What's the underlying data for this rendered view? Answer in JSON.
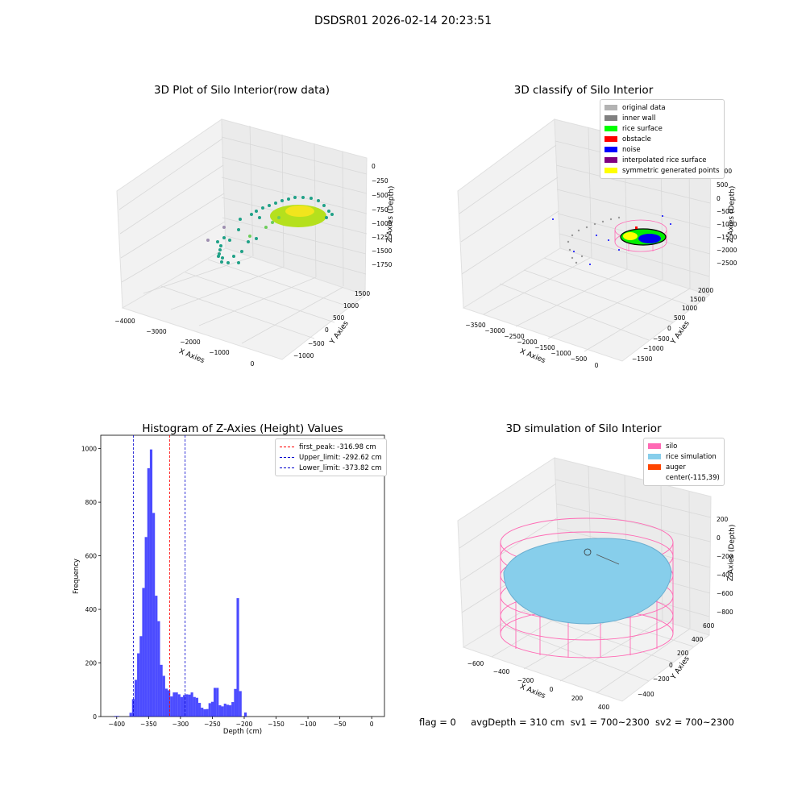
{
  "suptitle": "DSDSR01 2026-02-14 20:23:51",
  "panels": {
    "raw": {
      "title": "3D Plot of Silo Interior(row data)",
      "xlabel": "X Axies",
      "ylabel": "Y Axies",
      "zlabel": "Z Axies (Depth)",
      "xticks": [
        "−4000",
        "−3000",
        "−2000",
        "−1000",
        "0"
      ],
      "yticks": [
        "−1000",
        "−500",
        "0",
        "500",
        "1000",
        "1500"
      ],
      "zticks": [
        "0",
        "−250",
        "−500",
        "−750",
        "−1000",
        "−1250",
        "−1500",
        "−1750"
      ]
    },
    "classify": {
      "title": "3D classify of Silo Interior",
      "xlabel": "X Axies",
      "ylabel": "Y Axies",
      "zlabel": "Z Axies (Depth)",
      "xticks": [
        "−3500",
        "−3000",
        "−2500",
        "−2000",
        "−1500",
        "−1000",
        "−500",
        "0"
      ],
      "yticks": [
        "−1500",
        "−1000",
        "−500",
        "0",
        "500",
        "1000",
        "1500",
        "2000"
      ],
      "zticks": [
        "1000",
        "500",
        "0",
        "−500",
        "−1000",
        "−1500",
        "−2000",
        "−2500"
      ],
      "legend": [
        {
          "label": "original data",
          "color": "#b3b3b3"
        },
        {
          "label": "inner wall",
          "color": "#808080"
        },
        {
          "label": "rice surface",
          "color": "#00ff00"
        },
        {
          "label": "obstacle",
          "color": "#ff0000"
        },
        {
          "label": "noise",
          "color": "#0000ff"
        },
        {
          "label": "interpolated rice surface",
          "color": "#800080"
        },
        {
          "label": "symmetric generated points",
          "color": "#ffff00"
        }
      ]
    },
    "simulation": {
      "title": "3D simulation of Silo Interior",
      "xlabel": "X Axies",
      "ylabel": "Y Axies",
      "zlabel": "Z Axies (Depth)",
      "xticks": [
        "−600",
        "−400",
        "−200",
        "0",
        "200",
        "400"
      ],
      "yticks": [
        "−400",
        "−200",
        "0",
        "200",
        "400",
        "600"
      ],
      "zticks": [
        "200",
        "0",
        "−200",
        "−400",
        "−600",
        "−800"
      ],
      "legend": [
        {
          "label": "silo",
          "color": "#ff69b4"
        },
        {
          "label": "rice simulation",
          "color": "#87ceeb"
        },
        {
          "label": "auger",
          "color": "#ff4500"
        },
        {
          "label": "center(-115,39)",
          "color": ""
        }
      ]
    }
  },
  "chart_data": {
    "type": "bar",
    "title": "Histogram of Z-Axies (Height) Values",
    "xlabel": "Depth (cm)",
    "ylabel": "Frequency",
    "xlim": [
      -425,
      20
    ],
    "ylim": [
      0,
      1050
    ],
    "bar_color": "#0000ff",
    "xticks": [
      -400,
      -350,
      -300,
      -250,
      -200,
      -150,
      -100,
      -50,
      0
    ],
    "xtick_labels": [
      "−400",
      "−350",
      "−300",
      "−250",
      "−200",
      "−150",
      "−100",
      "−50",
      "0"
    ],
    "yticks": [
      0,
      200,
      400,
      600,
      800,
      1000
    ],
    "bins": [
      {
        "x0": -404,
        "x1": -396,
        "count": 2
      },
      {
        "x0": -396,
        "x1": -388,
        "count": 0
      },
      {
        "x0": -388,
        "x1": -380,
        "count": 0
      },
      {
        "x0": -380,
        "x1": -376,
        "count": 14
      },
      {
        "x0": -376,
        "x1": -372,
        "count": 65
      },
      {
        "x0": -372,
        "x1": -368,
        "count": 137
      },
      {
        "x0": -368,
        "x1": -364,
        "count": 236
      },
      {
        "x0": -364,
        "x1": -360,
        "count": 300
      },
      {
        "x0": -360,
        "x1": -356,
        "count": 480
      },
      {
        "x0": -356,
        "x1": -352,
        "count": 670
      },
      {
        "x0": -352,
        "x1": -348,
        "count": 927
      },
      {
        "x0": -348,
        "x1": -344,
        "count": 997
      },
      {
        "x0": -344,
        "x1": -340,
        "count": 760
      },
      {
        "x0": -340,
        "x1": -336,
        "count": 451
      },
      {
        "x0": -336,
        "x1": -332,
        "count": 356
      },
      {
        "x0": -332,
        "x1": -328,
        "count": 193
      },
      {
        "x0": -328,
        "x1": -324,
        "count": 152
      },
      {
        "x0": -324,
        "x1": -320,
        "count": 104
      },
      {
        "x0": -320,
        "x1": -316,
        "count": 98
      },
      {
        "x0": -316,
        "x1": -312,
        "count": 75
      },
      {
        "x0": -312,
        "x1": -308,
        "count": 90
      },
      {
        "x0": -308,
        "x1": -304,
        "count": 90
      },
      {
        "x0": -304,
        "x1": -300,
        "count": 83
      },
      {
        "x0": -300,
        "x1": -296,
        "count": 73
      },
      {
        "x0": -296,
        "x1": -292,
        "count": 80
      },
      {
        "x0": -292,
        "x1": -288,
        "count": 83
      },
      {
        "x0": -288,
        "x1": -284,
        "count": 82
      },
      {
        "x0": -284,
        "x1": -280,
        "count": 90
      },
      {
        "x0": -280,
        "x1": -276,
        "count": 73
      },
      {
        "x0": -276,
        "x1": -272,
        "count": 70
      },
      {
        "x0": -272,
        "x1": -268,
        "count": 51
      },
      {
        "x0": -268,
        "x1": -264,
        "count": 33
      },
      {
        "x0": -264,
        "x1": -260,
        "count": 27
      },
      {
        "x0": -260,
        "x1": -256,
        "count": 28
      },
      {
        "x0": -256,
        "x1": -252,
        "count": 50
      },
      {
        "x0": -252,
        "x1": -248,
        "count": 55
      },
      {
        "x0": -248,
        "x1": -244,
        "count": 107
      },
      {
        "x0": -244,
        "x1": -240,
        "count": 107
      },
      {
        "x0": -240,
        "x1": -236,
        "count": 42
      },
      {
        "x0": -236,
        "x1": -232,
        "count": 38
      },
      {
        "x0": -232,
        "x1": -228,
        "count": 48
      },
      {
        "x0": -228,
        "x1": -224,
        "count": 44
      },
      {
        "x0": -224,
        "x1": -220,
        "count": 42
      },
      {
        "x0": -220,
        "x1": -216,
        "count": 54
      },
      {
        "x0": -216,
        "x1": -212,
        "count": 103
      },
      {
        "x0": -212,
        "x1": -208,
        "count": 442
      },
      {
        "x0": -208,
        "x1": -204,
        "count": 95
      },
      {
        "x0": -204,
        "x1": -200,
        "count": 0
      },
      {
        "x0": -200,
        "x1": -196,
        "count": 15
      }
    ],
    "vlines": [
      {
        "label": "first_peak: -316.98 cm",
        "x": -316.98,
        "color": "#ff0000"
      },
      {
        "label": "Upper_limit: -292.62 cm",
        "x": -292.62,
        "color": "#0000cc"
      },
      {
        "label": "Lower_limit: -373.82 cm",
        "x": -373.82,
        "color": "#0000cc"
      }
    ]
  },
  "footer": {
    "flag": "flag = 0",
    "avg": "avgDepth = 310 cm",
    "sv1": "sv1 = 700~2300",
    "sv2": "sv2 = 700~2300"
  }
}
